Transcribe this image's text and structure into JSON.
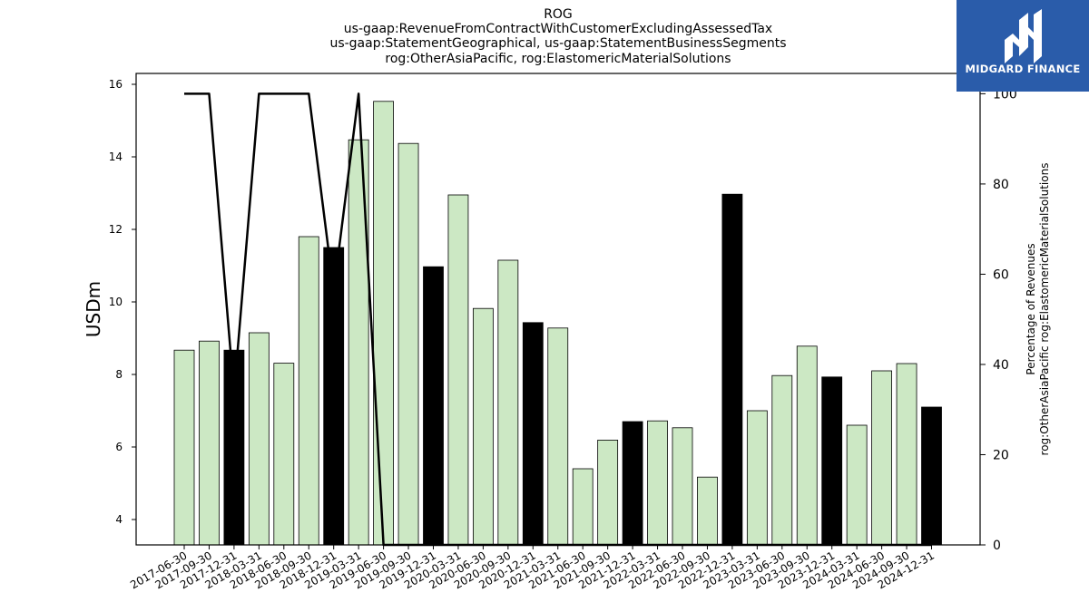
{
  "title_lines": [
    "ROG",
    "us-gaap:RevenueFromContractWithCustomerExcludingAssessedTax",
    "us-gaap:StatementGeographical, us-gaap:StatementBusinessSegments",
    "rog:OtherAsiaPacific, rog:ElastomericMaterialSolutions"
  ],
  "logo": {
    "text": "MIDGARD FINANCE"
  },
  "colors": {
    "bar_default": "#cce8c4",
    "bar_highlight": "#000000",
    "line": "#000000"
  },
  "chart_data": {
    "type": "bar",
    "categories": [
      "2017-06-30",
      "2017-09-30",
      "2017-12-31",
      "2018-03-31",
      "2018-06-30",
      "2018-09-30",
      "2018-12-31",
      "2019-03-31",
      "2019-06-30",
      "2019-09-30",
      "2019-12-31",
      "2020-03-31",
      "2020-06-30",
      "2020-09-30",
      "2020-12-31",
      "2021-03-31",
      "2021-06-30",
      "2021-09-30",
      "2021-12-31",
      "2022-03-31",
      "2022-06-30",
      "2022-09-30",
      "2022-12-31",
      "2023-03-31",
      "2023-06-30",
      "2023-09-30",
      "2023-12-31",
      "2024-03-31",
      "2024-06-30",
      "2024-09-30",
      "2024-12-31"
    ],
    "values": [
      8.67,
      8.92,
      8.67,
      9.15,
      8.31,
      11.8,
      11.5,
      14.47,
      15.53,
      14.37,
      10.97,
      12.95,
      9.82,
      11.15,
      9.43,
      9.28,
      5.4,
      6.19,
      6.7,
      6.72,
      6.53,
      5.17,
      12.97,
      7.0,
      7.97,
      8.78,
      7.93,
      6.6,
      8.1,
      8.3,
      7.1
    ],
    "highlight": [
      false,
      false,
      true,
      false,
      false,
      false,
      true,
      false,
      false,
      false,
      true,
      false,
      false,
      false,
      true,
      false,
      false,
      false,
      true,
      false,
      false,
      false,
      true,
      false,
      false,
      false,
      true,
      false,
      false,
      false,
      true
    ],
    "ylabel": "USDm",
    "y_ticks": [
      4,
      6,
      8,
      10,
      12,
      14,
      16
    ],
    "ylim": [
      3.3,
      16.3
    ],
    "secondary": {
      "type": "line",
      "ylabel_lines": [
        "Percentage of Revenues",
        "rog:OtherAsiaPacific rog:ElastomericMaterialSolutions"
      ],
      "values": [
        100,
        100,
        null,
        100,
        100,
        100,
        null,
        100,
        0,
        0,
        0,
        0,
        0,
        0,
        0,
        0,
        0,
        0,
        0,
        0,
        0,
        0,
        0,
        0,
        0,
        0,
        0,
        0,
        0,
        0,
        0
      ],
      "y_ticks": [
        0,
        20,
        40,
        60,
        80,
        100
      ],
      "ylim": [
        0,
        104.5
      ]
    }
  }
}
